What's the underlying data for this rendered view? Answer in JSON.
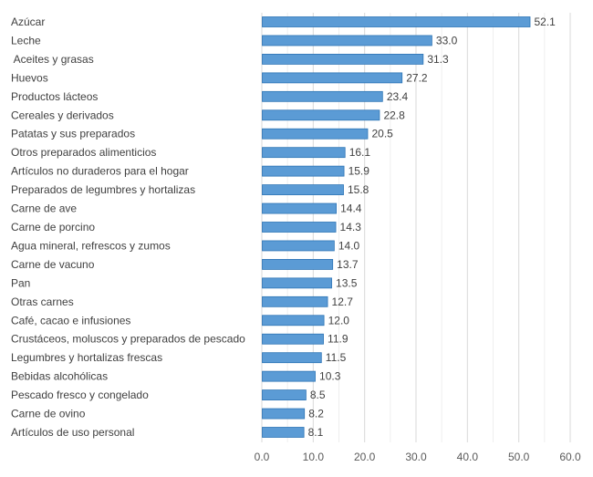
{
  "chart_data": {
    "type": "bar",
    "orientation": "horizontal",
    "categories": [
      "Azúcar",
      "Leche",
      " Aceites y grasas",
      "Huevos",
      "Productos lácteos",
      "Cereales y derivados",
      "Patatas y sus preparados",
      "Otros preparados alimenticios",
      "Artículos no duraderos para el hogar",
      "Preparados de legumbres y hortalizas",
      "Carne de ave",
      "Carne de porcino",
      "Agua mineral, refrescos y zumos",
      "Carne de vacuno",
      "Pan",
      "Otras carnes",
      "Café, cacao e infusiones",
      "Crustáceos, moluscos y preparados de pescado",
      "Legumbres y hortalizas frescas",
      "Bebidas alcohólicas",
      "Pescado fresco y congelado",
      "Carne de ovino",
      "Artículos de uso personal"
    ],
    "values": [
      52.1,
      33.0,
      31.3,
      27.2,
      23.4,
      22.8,
      20.5,
      16.1,
      15.9,
      15.8,
      14.4,
      14.3,
      14.0,
      13.7,
      13.5,
      12.7,
      12.0,
      11.9,
      11.5,
      10.3,
      8.5,
      8.2,
      8.1
    ],
    "value_labels": [
      "52.1",
      "33.0",
      "31.3",
      "27.2",
      "23.4",
      "22.8",
      "20.5",
      "16.1",
      "15.9",
      "15.8",
      "14.4",
      "14.3",
      "14.0",
      "13.7",
      "13.5",
      "12.7",
      "12.0",
      "11.9",
      "11.5",
      "10.3",
      "8.5",
      "8.2",
      "8.1"
    ],
    "xticks": [
      "0.0",
      "10.0",
      "20.0",
      "30.0",
      "40.0",
      "50.0",
      "60.0"
    ],
    "xlim": [
      0,
      60
    ],
    "grid": true,
    "bar_color": "#5b9bd5",
    "bar_edge_color": "#2e75b6"
  }
}
